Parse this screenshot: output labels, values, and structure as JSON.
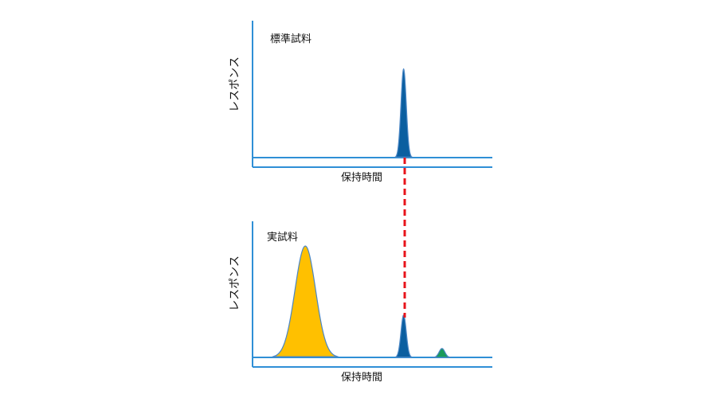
{
  "chart_data": [
    {
      "type": "line",
      "title": "標準試料",
      "xlabel": "保持時間",
      "ylabel": "レスポンス",
      "grid": false,
      "xlim": [
        0,
        10
      ],
      "ylim": [
        0,
        1
      ],
      "peaks": [
        {
          "center": 6.3,
          "height": 0.96,
          "width": 0.11,
          "color": "#0b5fa0"
        }
      ]
    },
    {
      "type": "line",
      "title": "実試料",
      "xlabel": "保持時間",
      "ylabel": "レスポンス",
      "grid": false,
      "xlim": [
        0,
        10
      ],
      "ylim": [
        0,
        1
      ],
      "peaks": [
        {
          "center": 2.2,
          "height": 1.0,
          "width": 0.43,
          "color": "#ffc000"
        },
        {
          "center": 6.3,
          "height": 0.38,
          "width": 0.11,
          "color": "#0b5fa0"
        },
        {
          "center": 7.9,
          "height": 0.08,
          "width": 0.12,
          "color": "#1a9a5a"
        }
      ]
    }
  ],
  "colors": {
    "axis": "#2f8fd6",
    "peak_outline": "#4a86c5",
    "connector": "#e8141b"
  }
}
